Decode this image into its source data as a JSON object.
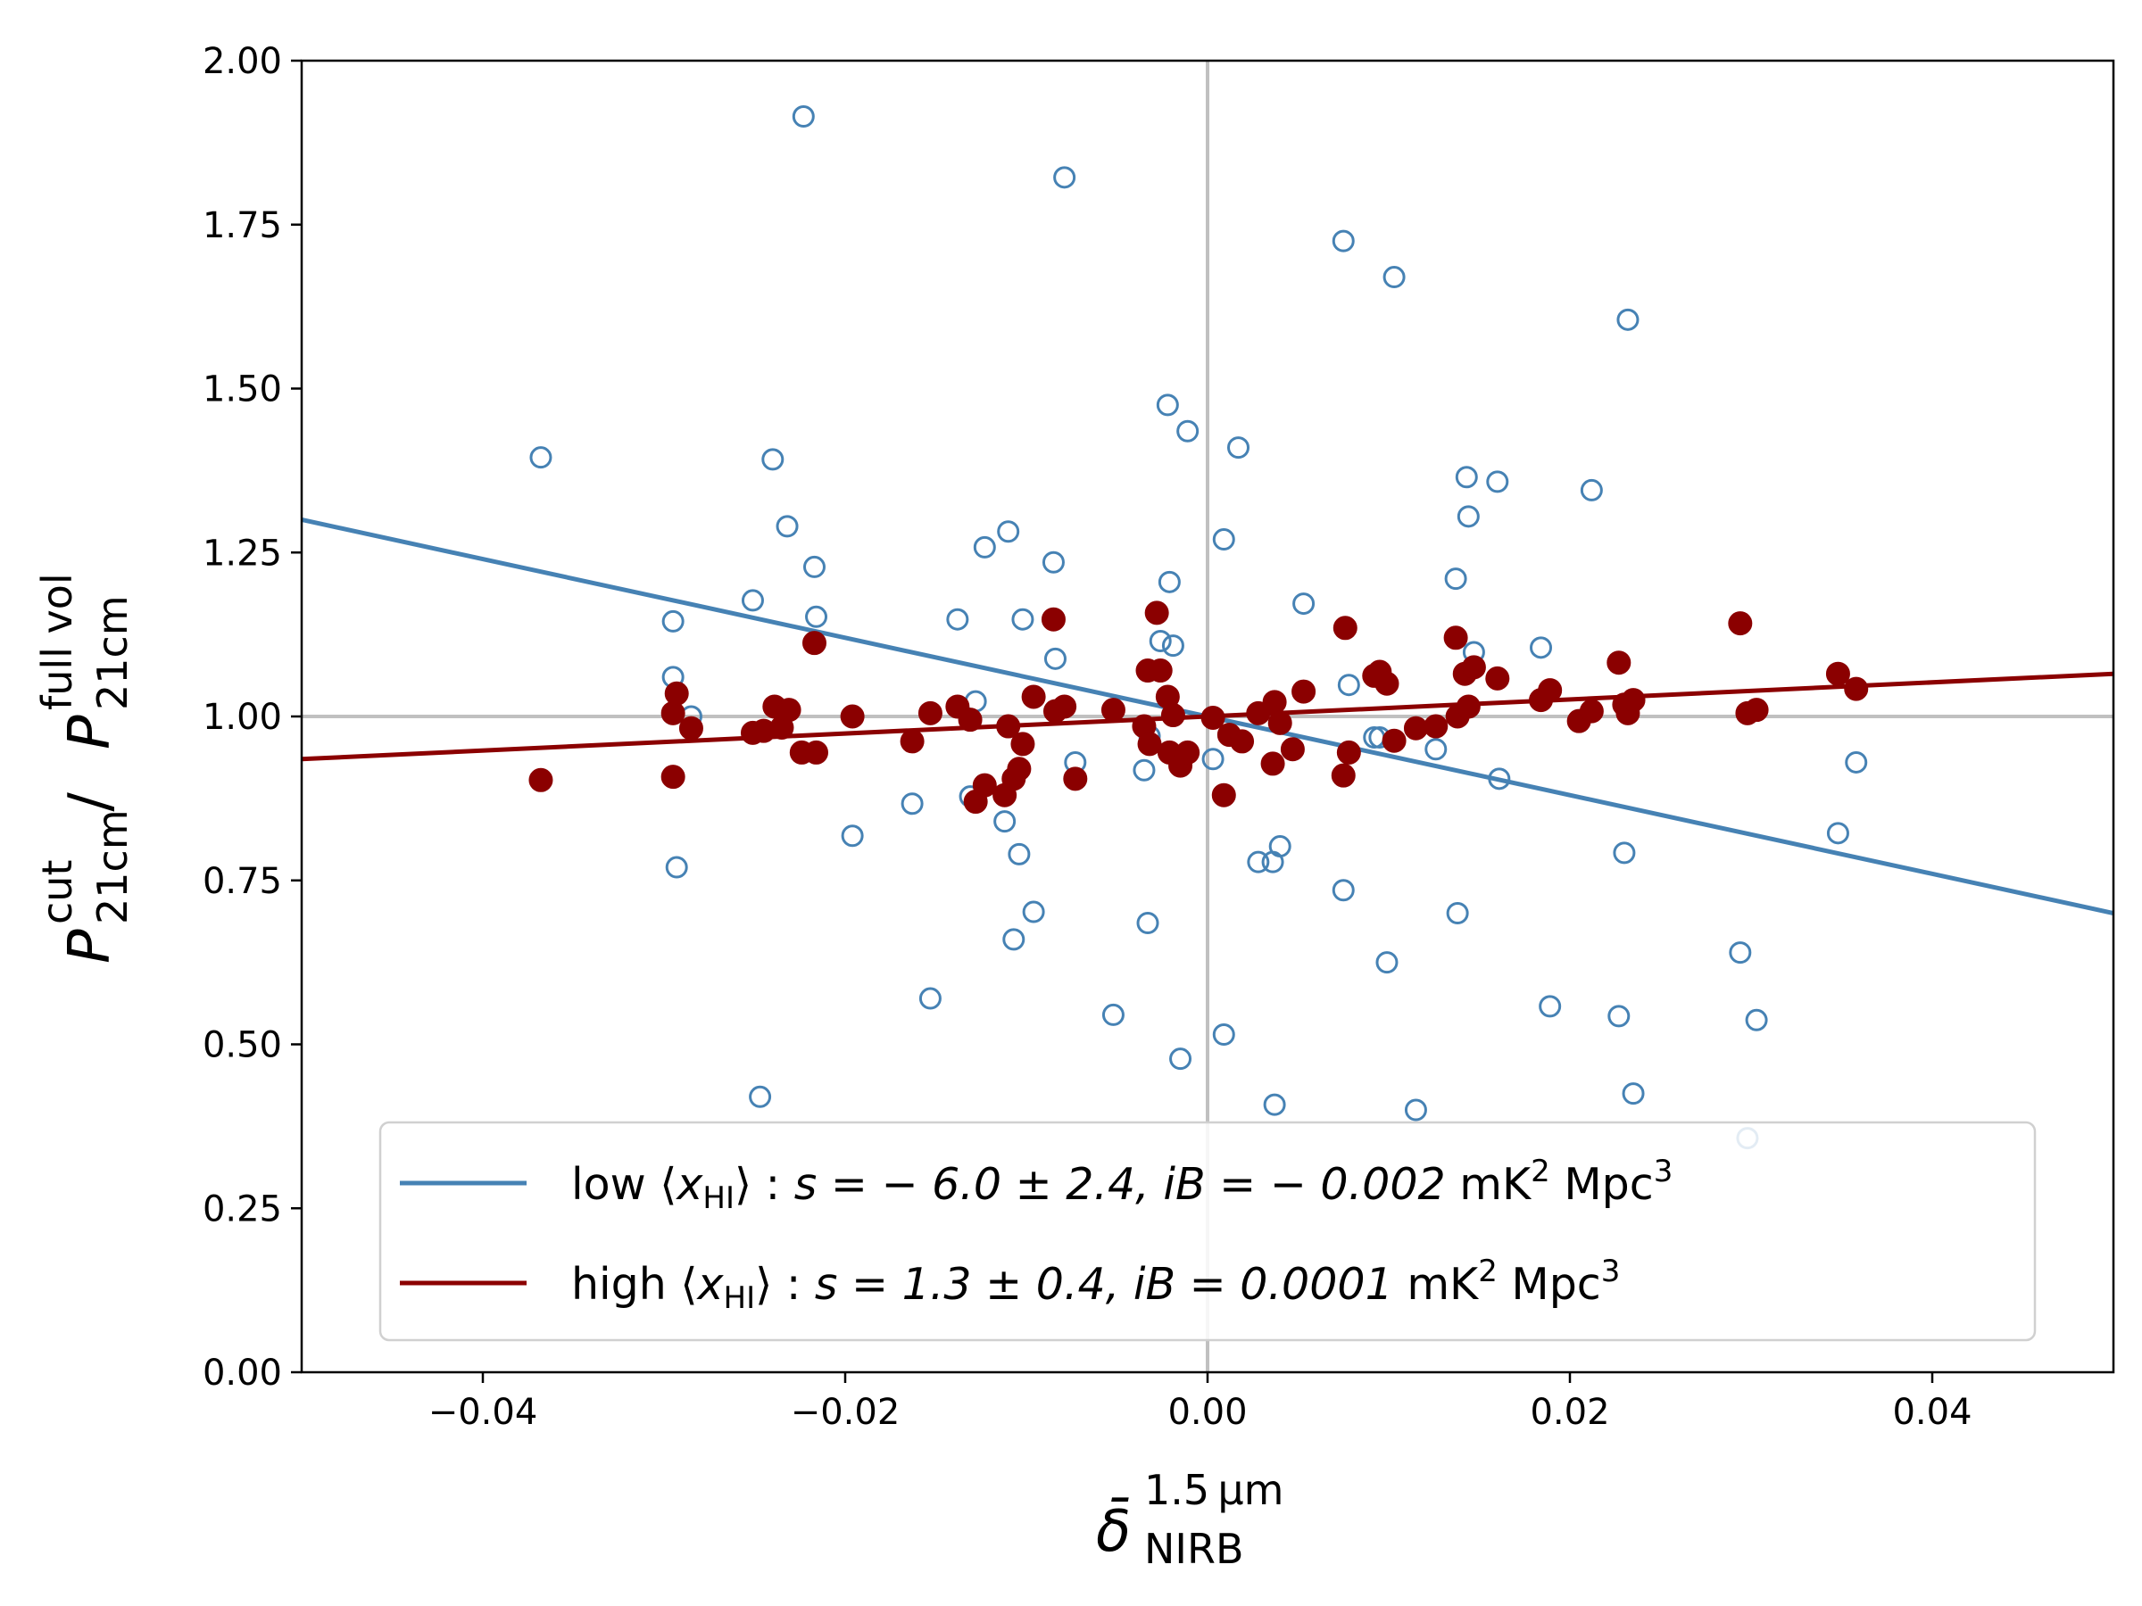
{
  "chart_data": {
    "type": "scatter",
    "xlim": [
      -0.05,
      0.05
    ],
    "ylim": [
      0.0,
      2.0
    ],
    "xticks": [
      -0.04,
      -0.02,
      0.0,
      0.02,
      0.04
    ],
    "xtick_labels": [
      "−0.04",
      "−0.02",
      "0.00",
      "0.02",
      "0.04"
    ],
    "yticks": [
      0.0,
      0.25,
      0.5,
      0.75,
      1.0,
      1.25,
      1.5,
      1.75,
      2.0
    ],
    "ytick_labels": [
      "0.00",
      "0.25",
      "0.50",
      "0.75",
      "1.00",
      "1.25",
      "1.50",
      "1.75",
      "2.00"
    ],
    "xlabel": {
      "base": "δ̄",
      "sup": "1.5 µm",
      "sub": "NIRB"
    },
    "ylabel": {
      "num_base": "P",
      "num_sup": "cut",
      "num_sub": "21cm",
      "sep": " / ",
      "den_base": "P",
      "den_sup": "full vol",
      "den_sub": "21cm"
    },
    "reference_lines": {
      "x": 0.0,
      "y": 1.0,
      "color": "#c0c0c0"
    },
    "grid": false,
    "legend_position": "lower-right",
    "series": [
      {
        "key": "low",
        "color": "#4682b4",
        "marker": "open-circle",
        "legend": {
          "prefix": "low ⟨",
          "var": "x",
          "var_sub": "HI",
          "mid": "⟩ : ",
          "s_part": "s = − 6.0 ± 2.4, ",
          "ib_part": "iB = − 0.002",
          "unit_a": " mK",
          "unit_a_sup": "2",
          "unit_b": " Mpc",
          "unit_b_sup": "3"
        },
        "fit": {
          "slope": -6.0,
          "intercept": 1.0
        },
        "points": [
          [
            -0.0368,
            1.395
          ],
          [
            -0.0295,
            1.145
          ],
          [
            -0.0295,
            1.06
          ],
          [
            -0.0293,
            0.77
          ],
          [
            -0.0285,
            1.0
          ],
          [
            -0.0251,
            1.177
          ],
          [
            -0.0247,
            0.42
          ],
          [
            -0.024,
            1.392
          ],
          [
            -0.0232,
            1.29
          ],
          [
            -0.0223,
            1.915
          ],
          [
            -0.0217,
            1.228
          ],
          [
            -0.0216,
            1.152
          ],
          [
            -0.0196,
            0.818
          ],
          [
            -0.0163,
            0.867
          ],
          [
            -0.0153,
            0.57
          ],
          [
            -0.0138,
            1.148
          ],
          [
            -0.0131,
            0.878
          ],
          [
            -0.0128,
            1.023
          ],
          [
            -0.0123,
            1.258
          ],
          [
            -0.0112,
            0.84
          ],
          [
            -0.011,
            1.282
          ],
          [
            -0.0107,
            0.66
          ],
          [
            -0.0104,
            0.79
          ],
          [
            -0.0102,
            1.148
          ],
          [
            -0.0096,
            0.702
          ],
          [
            -0.0085,
            1.235
          ],
          [
            -0.0084,
            1.088
          ],
          [
            -0.0079,
            1.822
          ],
          [
            -0.0073,
            0.93
          ],
          [
            -0.0052,
            0.545
          ],
          [
            -0.0035,
            0.918
          ],
          [
            -0.0033,
            0.685
          ],
          [
            -0.0032,
            0.97
          ],
          [
            -0.0026,
            1.115
          ],
          [
            -0.0022,
            1.475
          ],
          [
            -0.0021,
            1.205
          ],
          [
            -0.0019,
            1.108
          ],
          [
            -0.0015,
            0.478
          ],
          [
            -0.0011,
            1.435
          ],
          [
            0.0003,
            0.935
          ],
          [
            0.0009,
            0.515
          ],
          [
            0.0009,
            1.27
          ],
          [
            0.0017,
            1.41
          ],
          [
            0.0028,
            0.778
          ],
          [
            0.0036,
            0.778
          ],
          [
            0.0037,
            0.408
          ],
          [
            0.004,
            0.802
          ],
          [
            0.0053,
            1.172
          ],
          [
            0.0075,
            1.725
          ],
          [
            0.0075,
            0.735
          ],
          [
            0.0078,
            1.048
          ],
          [
            0.0092,
            0.968
          ],
          [
            0.0095,
            0.968
          ],
          [
            0.0099,
            0.625
          ],
          [
            0.0103,
            1.67
          ],
          [
            0.0115,
            0.4
          ],
          [
            0.0126,
            0.95
          ],
          [
            0.0137,
            1.21
          ],
          [
            0.0138,
            0.7
          ],
          [
            0.0143,
            1.365
          ],
          [
            0.0144,
            1.305
          ],
          [
            0.0147,
            1.098
          ],
          [
            0.016,
            1.358
          ],
          [
            0.0161,
            0.905
          ],
          [
            0.0184,
            1.105
          ],
          [
            0.0189,
            0.558
          ],
          [
            0.0212,
            1.345
          ],
          [
            0.0227,
            0.543
          ],
          [
            0.023,
            0.792
          ],
          [
            0.0232,
            1.605
          ],
          [
            0.0235,
            0.425
          ],
          [
            0.0294,
            0.64
          ],
          [
            0.0298,
            0.357
          ],
          [
            0.0303,
            0.537
          ],
          [
            0.0348,
            0.822
          ],
          [
            0.0358,
            0.93
          ]
        ]
      },
      {
        "key": "high",
        "color": "#8b0000",
        "marker": "filled-circle",
        "legend": {
          "prefix": "high ⟨",
          "var": "x",
          "var_sub": "HI",
          "mid": "⟩ : ",
          "s_part": "s = 1.3 ± 0.4, ",
          "ib_part": "iB = 0.0001",
          "unit_a": " mK",
          "unit_a_sup": "2",
          "unit_b": " Mpc",
          "unit_b_sup": "3"
        },
        "fit": {
          "slope": 1.3,
          "intercept": 1.0
        },
        "points": [
          [
            -0.0368,
            0.903
          ],
          [
            -0.0295,
            0.908
          ],
          [
            -0.0295,
            1.005
          ],
          [
            -0.0293,
            1.035
          ],
          [
            -0.0285,
            0.982
          ],
          [
            -0.0251,
            0.975
          ],
          [
            -0.0245,
            0.978
          ],
          [
            -0.0239,
            1.015
          ],
          [
            -0.0235,
            0.983
          ],
          [
            -0.0231,
            1.01
          ],
          [
            -0.0224,
            0.945
          ],
          [
            -0.0217,
            1.112
          ],
          [
            -0.0216,
            0.945
          ],
          [
            -0.0196,
            1.0
          ],
          [
            -0.0163,
            0.962
          ],
          [
            -0.0153,
            1.005
          ],
          [
            -0.0138,
            1.015
          ],
          [
            -0.0131,
            0.995
          ],
          [
            -0.0128,
            0.87
          ],
          [
            -0.0123,
            0.895
          ],
          [
            -0.0112,
            0.88
          ],
          [
            -0.011,
            0.985
          ],
          [
            -0.0107,
            0.905
          ],
          [
            -0.0104,
            0.92
          ],
          [
            -0.0102,
            0.958
          ],
          [
            -0.0096,
            1.03
          ],
          [
            -0.0085,
            1.148
          ],
          [
            -0.0084,
            1.008
          ],
          [
            -0.0079,
            1.015
          ],
          [
            -0.0073,
            0.905
          ],
          [
            -0.0052,
            1.01
          ],
          [
            -0.0035,
            0.985
          ],
          [
            -0.0033,
            1.07
          ],
          [
            -0.0032,
            0.958
          ],
          [
            -0.0028,
            1.158
          ],
          [
            -0.0026,
            1.07
          ],
          [
            -0.0022,
            1.03
          ],
          [
            -0.0021,
            0.945
          ],
          [
            -0.0019,
            1.002
          ],
          [
            -0.0015,
            0.925
          ],
          [
            -0.0011,
            0.945
          ],
          [
            0.0003,
            0.998
          ],
          [
            0.0009,
            0.88
          ],
          [
            0.0012,
            0.972
          ],
          [
            0.0019,
            0.962
          ],
          [
            0.0028,
            1.005
          ],
          [
            0.0036,
            0.928
          ],
          [
            0.0037,
            1.022
          ],
          [
            0.004,
            0.99
          ],
          [
            0.0047,
            0.95
          ],
          [
            0.0053,
            1.038
          ],
          [
            0.0075,
            0.91
          ],
          [
            0.0076,
            1.135
          ],
          [
            0.0078,
            0.945
          ],
          [
            0.0092,
            1.062
          ],
          [
            0.0095,
            1.068
          ],
          [
            0.0099,
            1.05
          ],
          [
            0.0103,
            0.963
          ],
          [
            0.0115,
            0.982
          ],
          [
            0.0126,
            0.985
          ],
          [
            0.0137,
            1.12
          ],
          [
            0.0138,
            1.0
          ],
          [
            0.0142,
            1.065
          ],
          [
            0.0144,
            1.015
          ],
          [
            0.0147,
            1.075
          ],
          [
            0.016,
            1.058
          ],
          [
            0.0184,
            1.025
          ],
          [
            0.0189,
            1.04
          ],
          [
            0.0205,
            0.993
          ],
          [
            0.0212,
            1.008
          ],
          [
            0.0227,
            1.082
          ],
          [
            0.023,
            1.018
          ],
          [
            0.0232,
            1.005
          ],
          [
            0.0235,
            1.025
          ],
          [
            0.0294,
            1.142
          ],
          [
            0.0298,
            1.005
          ],
          [
            0.0303,
            1.01
          ],
          [
            0.0348,
            1.065
          ],
          [
            0.0358,
            1.042
          ]
        ]
      }
    ]
  }
}
